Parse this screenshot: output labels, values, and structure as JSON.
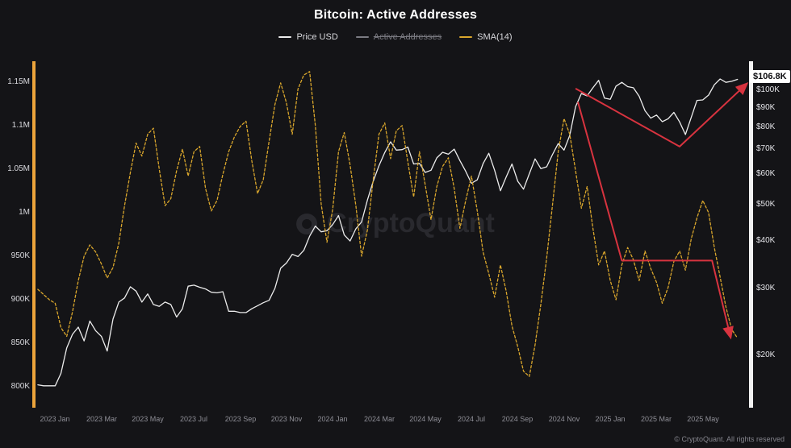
{
  "title": "Bitcoin: Active Addresses",
  "watermark": "CryptoQuant",
  "copyright": "© CryptoQuant. All rights reserved",
  "price_badge": "$106.8K",
  "legend": [
    {
      "label": "Price USD",
      "color": "#ececec",
      "disabled": false
    },
    {
      "label": "Active Addresses",
      "color": "#7b7b82",
      "disabled": true
    },
    {
      "label": "SMA(14)",
      "color": "#d9a62c",
      "disabled": false
    }
  ],
  "chart_data": {
    "type": "line",
    "title": "Bitcoin: Active Addresses",
    "legend_position": "top",
    "grid": false,
    "x_domain": [
      -0.85,
      30.0
    ],
    "x_start": -0.75,
    "x_step": 0.25,
    "x_ticks": [
      {
        "m": 0,
        "label": "2023 Jan"
      },
      {
        "m": 2,
        "label": "2023 Mar"
      },
      {
        "m": 4,
        "label": "2023 May"
      },
      {
        "m": 6,
        "label": "2023 Jul"
      },
      {
        "m": 8,
        "label": "2023 Sep"
      },
      {
        "m": 10,
        "label": "2023 Nov"
      },
      {
        "m": 12,
        "label": "2024 Jan"
      },
      {
        "m": 14,
        "label": "2024 Mar"
      },
      {
        "m": 16,
        "label": "2024 May"
      },
      {
        "m": 18,
        "label": "2024 Jul"
      },
      {
        "m": 20,
        "label": "2024 Sep"
      },
      {
        "m": 22,
        "label": "2024 Nov"
      },
      {
        "m": 24,
        "label": "2025 Jan"
      },
      {
        "m": 26,
        "label": "2025 Mar"
      },
      {
        "m": 28,
        "label": "2025 May"
      }
    ],
    "left_axis": {
      "scale": "linear",
      "unit": "thousand addresses",
      "ylim": [
        777,
        1172
      ],
      "ticks": [
        {
          "v": 800,
          "label": "800K"
        },
        {
          "v": 850,
          "label": "850K"
        },
        {
          "v": 900,
          "label": "900K"
        },
        {
          "v": 950,
          "label": "950K"
        },
        {
          "v": 1000,
          "label": "1M"
        },
        {
          "v": 1050,
          "label": "1.05M"
        },
        {
          "v": 1100,
          "label": "1.1M"
        },
        {
          "v": 1150,
          "label": "1.15M"
        }
      ]
    },
    "right_axis": {
      "scale": "log",
      "unit": "thousand USD",
      "ylim": [
        14.6,
        118.1
      ],
      "ticks": [
        {
          "v": 20,
          "label": "$20K"
        },
        {
          "v": 30,
          "label": "$30K"
        },
        {
          "v": 40,
          "label": "$40K"
        },
        {
          "v": 50,
          "label": "$50K"
        },
        {
          "v": 60,
          "label": "$60K"
        },
        {
          "v": 70,
          "label": "$70K"
        },
        {
          "v": 80,
          "label": "$80K"
        },
        {
          "v": 90,
          "label": "$90K"
        },
        {
          "v": 100,
          "label": "$100K"
        }
      ]
    },
    "series": [
      {
        "name": "Price USD",
        "axis": "right",
        "color": "#ececec",
        "width": 1.3,
        "values": [
          16.7,
          16.6,
          16.6,
          16.6,
          17.9,
          20.9,
          22.7,
          23.7,
          21.8,
          24.6,
          23.2,
          22.4,
          20.5,
          24.9,
          27.6,
          28.3,
          30.3,
          29.5,
          27.6,
          29.0,
          27.2,
          26.9,
          27.6,
          27.2,
          25.2,
          26.5,
          30.4,
          30.6,
          30.2,
          29.9,
          29.3,
          29.2,
          29.4,
          26.1,
          26.1,
          25.9,
          25.9,
          26.5,
          27.0,
          27.5,
          27.9,
          30.0,
          33.9,
          35.0,
          36.9,
          36.4,
          37.8,
          41.2,
          43.8,
          42.3,
          42.6,
          44.2,
          46.7,
          41.5,
          40.0,
          43.1,
          44.9,
          51.3,
          57.5,
          63.2,
          68.5,
          73.1,
          69.5,
          69.7,
          70.8,
          63.9,
          64.1,
          60.7,
          61.5,
          66.3,
          68.6,
          67.8,
          69.9,
          65.2,
          61.1,
          56.8,
          58.0,
          64.0,
          68.2,
          61.5,
          54.3,
          59.0,
          63.9,
          57.5,
          54.8,
          60.2,
          65.9,
          62.1,
          62.8,
          67.6,
          72.3,
          69.5,
          76.0,
          90.5,
          98.0,
          96.6,
          101.5,
          106.2,
          95.3,
          94.6,
          102.5,
          104.9,
          102.2,
          101.5,
          96.4,
          88.3,
          84.4,
          86.0,
          82.6,
          84.1,
          87.4,
          82.5,
          76.4,
          84.8,
          94.0,
          94.3,
          97.1,
          103.4,
          107.1,
          104.9,
          105.6,
          106.8
        ]
      },
      {
        "name": "SMA(14)",
        "axis": "left",
        "color": "#d9a62c",
        "width": 1.3,
        "dash": "3 2.5",
        "values": [
          912,
          906,
          900,
          896,
          868,
          858,
          886,
          922,
          950,
          963,
          955,
          941,
          925,
          937,
          965,
          1008,
          1046,
          1080,
          1065,
          1090,
          1097,
          1050,
          1008,
          1016,
          1048,
          1073,
          1042,
          1070,
          1076,
          1028,
          1002,
          1014,
          1044,
          1070,
          1087,
          1099,
          1105,
          1060,
          1022,
          1038,
          1082,
          1124,
          1149,
          1126,
          1090,
          1142,
          1158,
          1162,
          1100,
          1010,
          966,
          1004,
          1070,
          1092,
          1055,
          1008,
          950,
          980,
          1038,
          1090,
          1103,
          1062,
          1094,
          1100,
          1058,
          1018,
          1070,
          1032,
          992,
          1030,
          1053,
          1063,
          1028,
          982,
          1014,
          1042,
          1002,
          955,
          930,
          903,
          940,
          910,
          870,
          846,
          818,
          812,
          848,
          895,
          948,
          1008,
          1070,
          1108,
          1090,
          1048,
          1005,
          1030,
          982,
          940,
          956,
          922,
          900,
          940,
          960,
          946,
          922,
          956,
          936,
          920,
          896,
          914,
          944,
          956,
          934,
          970,
          994,
          1014,
          1000,
          960,
          926,
          892,
          866,
          856
        ]
      }
    ],
    "annotations": {
      "color": "#d8333f",
      "arrows": [
        {
          "axis": "right",
          "points": [
            [
              22.5,
              101
            ],
            [
              27.0,
              71
            ],
            [
              29.9,
              104
            ]
          ]
        },
        {
          "axis": "left",
          "points": [
            [
              22.6,
              1127
            ],
            [
              24.5,
              945
            ],
            [
              28.4,
              945
            ],
            [
              29.2,
              857
            ]
          ]
        }
      ]
    }
  }
}
